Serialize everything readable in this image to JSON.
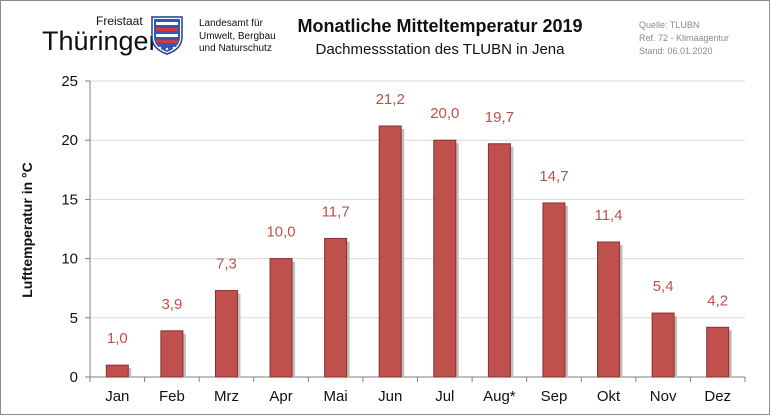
{
  "header": {
    "logo_line1": "Freistaat",
    "logo_line2": "Thüringen",
    "agency_lines": [
      "Landesamt für",
      "Umwelt, Bergbau",
      "und Naturschutz"
    ],
    "source_lines": [
      "Quelle: TLUBN",
      "Ref. 72 - Klimaagentur",
      "Stand: 06.01.2020"
    ]
  },
  "colors": {
    "bar": "#c0504d",
    "bar_edge": "#8b2f2d",
    "label": "#c0504d",
    "axis": "#7f7f7f",
    "grid": "#d9d9d9"
  },
  "chart_data": {
    "type": "bar",
    "title": "Monatliche Mitteltemperatur 2019",
    "subtitle": "Dachmessstation  des  TLUBN  in  Jena",
    "xlabel": "",
    "ylabel": "Lufttemperatur in °C",
    "ylim": [
      0,
      25
    ],
    "yticks": [
      0,
      5,
      10,
      15,
      20,
      25
    ],
    "grid": true,
    "categories": [
      "Jan",
      "Feb",
      "Mrz",
      "Apr",
      "Mai",
      "Jun",
      "Jul",
      "Aug*",
      "Sep",
      "Okt",
      "Nov",
      "Dez"
    ],
    "values": [
      1.0,
      3.9,
      7.3,
      10.0,
      11.7,
      21.2,
      20.0,
      19.7,
      14.7,
      11.4,
      5.4,
      4.2
    ],
    "value_labels": [
      "1,0",
      "3,9",
      "7,3",
      "10,0",
      "11,7",
      "21,2",
      "20,0",
      "19,7",
      "14,7",
      "11,4",
      "5,4",
      "4,2"
    ]
  }
}
